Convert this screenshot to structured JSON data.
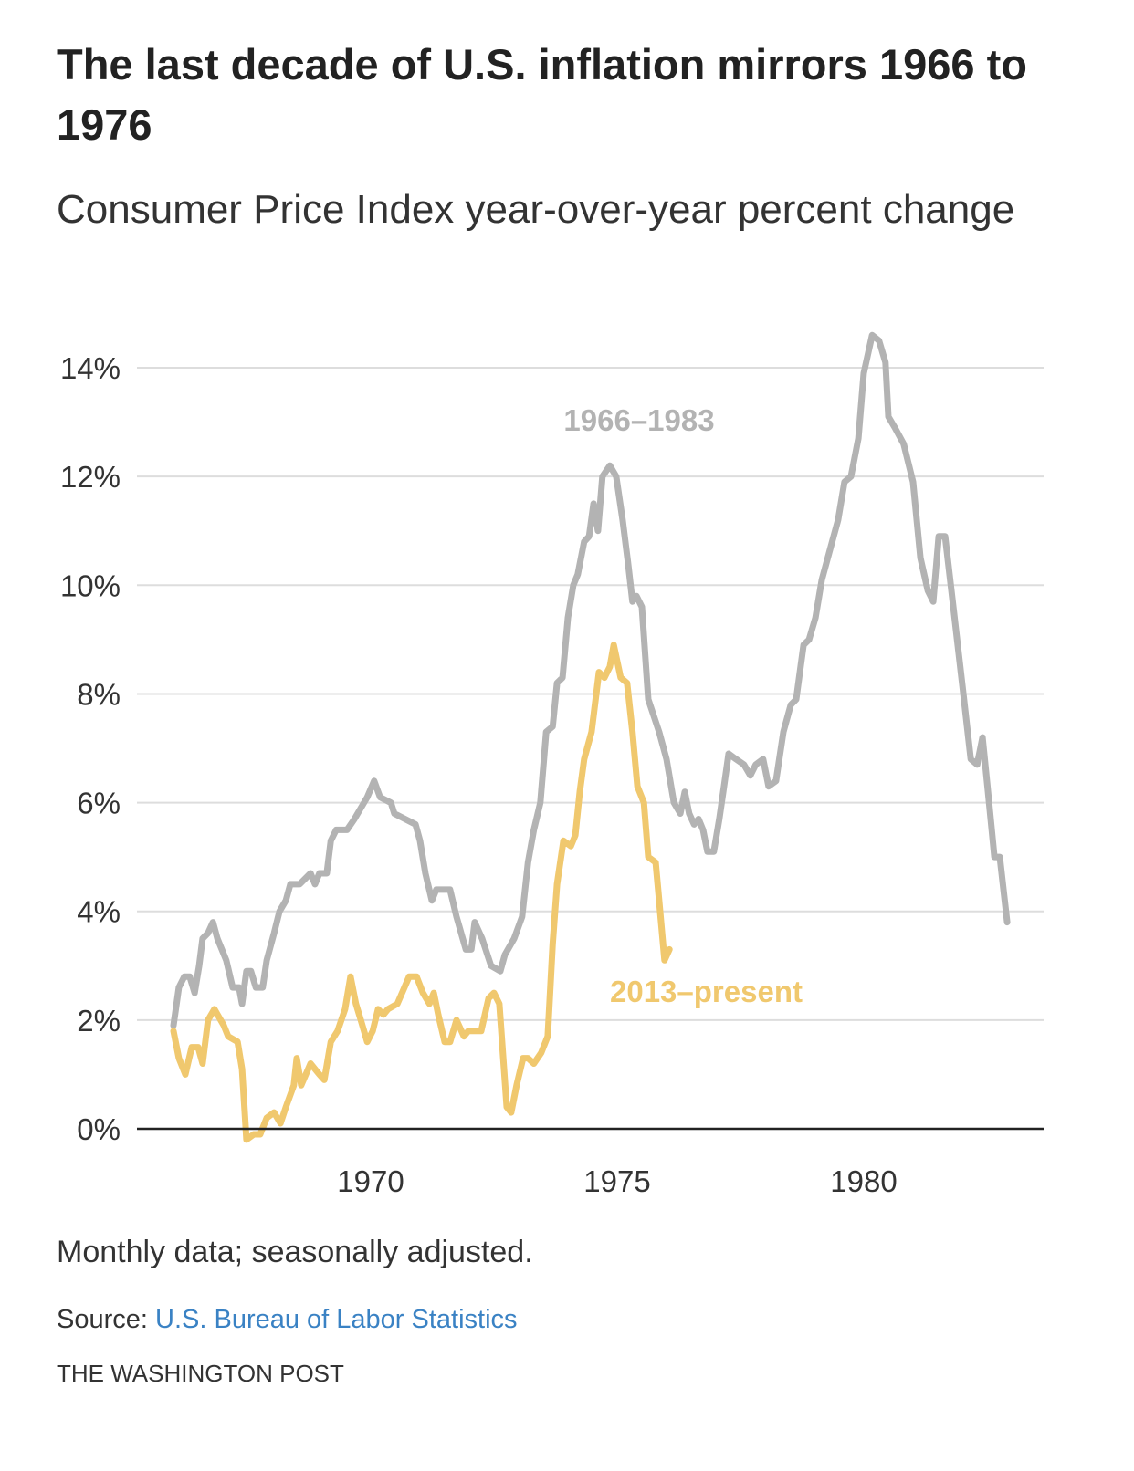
{
  "title": "The last decade of U.S. inflation mirrors 1966 to 1976",
  "subtitle": "Consumer Price Index year-over-year percent change",
  "note": "Monthly data; seasonally adjusted.",
  "source_label": "Source:",
  "source_link": "U.S. Bureau of Labor Statistics",
  "credit": "THE WASHINGTON POST",
  "colors": {
    "series_1966": "#b3b3b3",
    "series_2013": "#f0c86e",
    "link": "#3a82c4",
    "grid": "#dddddd",
    "baseline": "#222222"
  },
  "chart_data": {
    "type": "line",
    "title": "The last decade of U.S. inflation mirrors 1966 to 1976",
    "subtitle": "Consumer Price Index year-over-year percent change",
    "xlabel": "",
    "ylabel": "",
    "xlim": [
      1966,
      1983.3
    ],
    "ylim": [
      0,
      14
    ],
    "x_ticks": [
      "1970",
      "1975",
      "1980"
    ],
    "x_tick_values": [
      1970,
      1975,
      1980
    ],
    "y_ticks": [
      "0%",
      "2%",
      "4%",
      "6%",
      "8%",
      "10%",
      "12%",
      "14%"
    ],
    "y_tick_values": [
      0,
      2,
      4,
      6,
      8,
      10,
      12,
      14
    ],
    "grid": "horizontal",
    "series": [
      {
        "name": "1966–1983",
        "color": "#b3b3b3",
        "points": [
          [
            1966.0,
            1.9
          ],
          [
            1966.11,
            2.6
          ],
          [
            1966.22,
            2.8
          ],
          [
            1966.33,
            2.8
          ],
          [
            1966.43,
            2.5
          ],
          [
            1966.52,
            3.0
          ],
          [
            1966.59,
            3.5
          ],
          [
            1966.7,
            3.6
          ],
          [
            1966.8,
            3.8
          ],
          [
            1966.89,
            3.5
          ],
          [
            1967.07,
            3.1
          ],
          [
            1967.2,
            2.6
          ],
          [
            1967.33,
            2.6
          ],
          [
            1967.39,
            2.3
          ],
          [
            1967.48,
            2.9
          ],
          [
            1967.57,
            2.9
          ],
          [
            1967.67,
            2.6
          ],
          [
            1967.81,
            2.6
          ],
          [
            1967.89,
            3.1
          ],
          [
            1968.04,
            3.6
          ],
          [
            1968.15,
            4.0
          ],
          [
            1968.28,
            4.2
          ],
          [
            1968.37,
            4.5
          ],
          [
            1968.56,
            4.5
          ],
          [
            1968.78,
            4.7
          ],
          [
            1968.87,
            4.5
          ],
          [
            1968.96,
            4.7
          ],
          [
            1969.11,
            4.7
          ],
          [
            1969.19,
            5.3
          ],
          [
            1969.3,
            5.5
          ],
          [
            1969.52,
            5.5
          ],
          [
            1969.67,
            5.7
          ],
          [
            1969.8,
            5.9
          ],
          [
            1969.93,
            6.1
          ],
          [
            1970.07,
            6.4
          ],
          [
            1970.19,
            6.1
          ],
          [
            1970.41,
            6.0
          ],
          [
            1970.48,
            5.8
          ],
          [
            1970.91,
            5.6
          ],
          [
            1971.0,
            5.3
          ],
          [
            1971.11,
            4.7
          ],
          [
            1971.24,
            4.2
          ],
          [
            1971.33,
            4.4
          ],
          [
            1971.61,
            4.4
          ],
          [
            1971.74,
            3.9
          ],
          [
            1971.93,
            3.3
          ],
          [
            1972.04,
            3.3
          ],
          [
            1972.11,
            3.8
          ],
          [
            1972.26,
            3.5
          ],
          [
            1972.44,
            3.0
          ],
          [
            1972.63,
            2.9
          ],
          [
            1972.72,
            3.2
          ],
          [
            1972.91,
            3.5
          ],
          [
            1973.07,
            3.9
          ],
          [
            1973.19,
            4.9
          ],
          [
            1973.31,
            5.5
          ],
          [
            1973.44,
            6.0
          ],
          [
            1973.56,
            7.3
          ],
          [
            1973.69,
            7.4
          ],
          [
            1973.78,
            8.2
          ],
          [
            1973.89,
            8.3
          ],
          [
            1974.0,
            9.4
          ],
          [
            1974.11,
            10.0
          ],
          [
            1974.2,
            10.2
          ],
          [
            1974.33,
            10.8
          ],
          [
            1974.43,
            10.9
          ],
          [
            1974.52,
            11.5
          ],
          [
            1974.61,
            11.0
          ],
          [
            1974.7,
            12.0
          ],
          [
            1974.85,
            12.2
          ],
          [
            1974.98,
            12.0
          ],
          [
            1975.11,
            11.2
          ],
          [
            1975.22,
            10.4
          ],
          [
            1975.31,
            9.7
          ],
          [
            1975.39,
            9.8
          ],
          [
            1975.5,
            9.6
          ],
          [
            1975.63,
            7.9
          ],
          [
            1975.85,
            7.3
          ],
          [
            1976.0,
            6.8
          ],
          [
            1976.15,
            6.0
          ],
          [
            1976.28,
            5.8
          ],
          [
            1976.37,
            6.2
          ],
          [
            1976.46,
            5.8
          ],
          [
            1976.56,
            5.6
          ],
          [
            1976.65,
            5.7
          ],
          [
            1976.74,
            5.5
          ],
          [
            1976.83,
            5.1
          ],
          [
            1976.96,
            5.1
          ],
          [
            1977.07,
            5.7
          ],
          [
            1977.15,
            6.2
          ],
          [
            1977.26,
            6.9
          ],
          [
            1977.41,
            6.8
          ],
          [
            1977.57,
            6.7
          ],
          [
            1977.7,
            6.5
          ],
          [
            1977.81,
            6.7
          ],
          [
            1977.96,
            6.8
          ],
          [
            1978.07,
            6.3
          ],
          [
            1978.22,
            6.4
          ],
          [
            1978.37,
            7.3
          ],
          [
            1978.52,
            7.8
          ],
          [
            1978.63,
            7.9
          ],
          [
            1978.78,
            8.9
          ],
          [
            1978.89,
            9.0
          ],
          [
            1979.02,
            9.4
          ],
          [
            1979.15,
            10.1
          ],
          [
            1979.33,
            10.7
          ],
          [
            1979.48,
            11.2
          ],
          [
            1979.61,
            11.9
          ],
          [
            1979.74,
            12.0
          ],
          [
            1979.89,
            12.7
          ],
          [
            1980.0,
            13.9
          ],
          [
            1980.17,
            14.6
          ],
          [
            1980.31,
            14.5
          ],
          [
            1980.44,
            14.1
          ],
          [
            1980.5,
            13.1
          ],
          [
            1980.63,
            12.9
          ],
          [
            1980.81,
            12.6
          ],
          [
            1981.0,
            11.9
          ],
          [
            1981.15,
            10.5
          ],
          [
            1981.3,
            9.9
          ],
          [
            1981.41,
            9.7
          ],
          [
            1981.52,
            10.9
          ],
          [
            1981.65,
            10.9
          ],
          [
            1981.83,
            9.5
          ],
          [
            1982.02,
            8.0
          ],
          [
            1982.17,
            6.8
          ],
          [
            1982.3,
            6.7
          ],
          [
            1982.41,
            7.2
          ],
          [
            1982.52,
            6.2
          ],
          [
            1982.65,
            5.0
          ],
          [
            1982.76,
            5.0
          ],
          [
            1982.91,
            3.8
          ]
        ]
      },
      {
        "name": "2013–present",
        "color": "#f0c86e",
        "points": [
          [
            2013.0,
            1.8
          ],
          [
            2013.11,
            1.3
          ],
          [
            2013.24,
            1.0
          ],
          [
            2013.37,
            1.5
          ],
          [
            2013.5,
            1.5
          ],
          [
            2013.59,
            1.2
          ],
          [
            2013.7,
            2.0
          ],
          [
            2013.83,
            2.2
          ],
          [
            2014.02,
            1.9
          ],
          [
            2014.11,
            1.7
          ],
          [
            2014.3,
            1.6
          ],
          [
            2014.39,
            1.1
          ],
          [
            2014.48,
            -0.2
          ],
          [
            2014.63,
            -0.1
          ],
          [
            2014.76,
            -0.1
          ],
          [
            2014.89,
            0.2
          ],
          [
            2015.04,
            0.3
          ],
          [
            2015.17,
            0.1
          ],
          [
            2015.28,
            0.4
          ],
          [
            2015.44,
            0.8
          ],
          [
            2015.5,
            1.3
          ],
          [
            2015.59,
            0.8
          ],
          [
            2015.78,
            1.2
          ],
          [
            2015.96,
            1.0
          ],
          [
            2016.06,
            0.9
          ],
          [
            2016.19,
            1.6
          ],
          [
            2016.33,
            1.8
          ],
          [
            2016.48,
            2.2
          ],
          [
            2016.59,
            2.8
          ],
          [
            2016.7,
            2.3
          ],
          [
            2016.8,
            2.0
          ],
          [
            2016.93,
            1.6
          ],
          [
            2017.04,
            1.8
          ],
          [
            2017.15,
            2.2
          ],
          [
            2017.26,
            2.1
          ],
          [
            2017.35,
            2.2
          ],
          [
            2017.54,
            2.3
          ],
          [
            2017.78,
            2.8
          ],
          [
            2017.93,
            2.8
          ],
          [
            2018.06,
            2.5
          ],
          [
            2018.19,
            2.3
          ],
          [
            2018.28,
            2.5
          ],
          [
            2018.37,
            2.1
          ],
          [
            2018.5,
            1.6
          ],
          [
            2018.61,
            1.6
          ],
          [
            2018.74,
            2.0
          ],
          [
            2018.89,
            1.7
          ],
          [
            2018.98,
            1.8
          ],
          [
            2019.11,
            1.8
          ],
          [
            2019.24,
            1.8
          ],
          [
            2019.39,
            2.4
          ],
          [
            2019.5,
            2.5
          ],
          [
            2019.61,
            2.3
          ],
          [
            2019.76,
            0.4
          ],
          [
            2019.85,
            0.3
          ],
          [
            2019.96,
            0.8
          ],
          [
            2020.09,
            1.3
          ],
          [
            2020.19,
            1.3
          ],
          [
            2020.31,
            1.2
          ],
          [
            2020.46,
            1.4
          ],
          [
            2020.59,
            1.7
          ],
          [
            2020.69,
            3.4
          ],
          [
            2020.78,
            4.5
          ],
          [
            2020.91,
            5.3
          ],
          [
            2021.06,
            5.2
          ],
          [
            2021.15,
            5.4
          ],
          [
            2021.24,
            6.2
          ],
          [
            2021.33,
            6.8
          ],
          [
            2021.48,
            7.3
          ],
          [
            2021.63,
            8.4
          ],
          [
            2021.74,
            8.3
          ],
          [
            2021.85,
            8.5
          ],
          [
            2021.93,
            8.9
          ],
          [
            2022.07,
            8.3
          ],
          [
            2022.2,
            8.2
          ],
          [
            2022.31,
            7.3
          ],
          [
            2022.41,
            6.3
          ],
          [
            2022.54,
            6.0
          ],
          [
            2022.63,
            5.0
          ],
          [
            2022.78,
            4.9
          ],
          [
            2022.85,
            4.2
          ],
          [
            2022.96,
            3.1
          ],
          [
            2023.06,
            3.3
          ]
        ]
      }
    ],
    "annotations": [
      "1966–1983",
      "2013–present"
    ]
  }
}
